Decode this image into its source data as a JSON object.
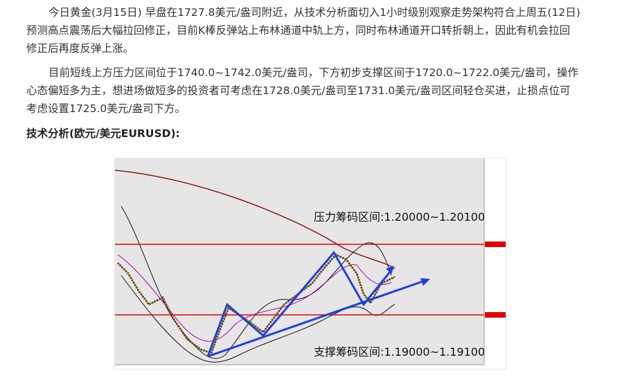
{
  "paragraphs": [
    "今日黄金(3月15日) 早盘在1727.8美元/盎司附近，从技术分析面切入1小时级别观察走势架构符合上周五(12日)预测高点震荡后大幅拉回修正，目前K棒反弹站上布林通道中轨上方，同时布林通道开口转折朝上，因此有机会拉回修正后再度反弹上涨。",
    "目前短线上方压力区间位于1740.0~1742.0美元/盎司，下方初步支撑区间于1720.0~1722.0美元/盎司，操作心态偏短多为主，想进场做短多的投资者可考虑在1728.0美元/盎司至1731.0美元/盎司区间轻仓买进，止损点位可考虑设置1725.0美元/盎司下方。"
  ],
  "heading": "技术分析(欧元/美元EURUSD):",
  "figure": {
    "resistance_label": "压力筹码区间:1.20000~1.20100",
    "support_label": "支撑筹码区间:1.19000~1.19100"
  }
}
